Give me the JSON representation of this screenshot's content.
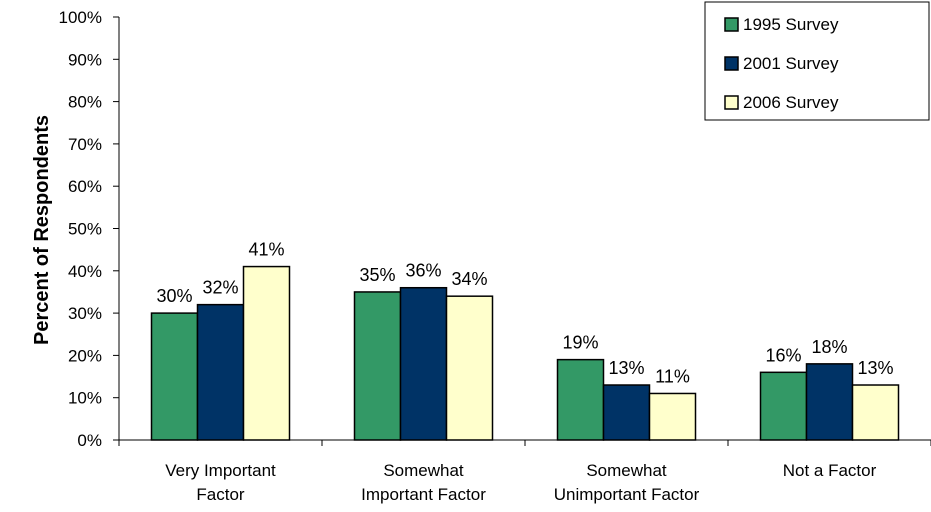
{
  "chart_data": {
    "type": "bar",
    "ylabel": "Percent of Respondents",
    "ylim": [
      0,
      100
    ],
    "yticks": [
      "0%",
      "10%",
      "20%",
      "30%",
      "40%",
      "50%",
      "60%",
      "70%",
      "80%",
      "90%",
      "100%"
    ],
    "categories": [
      [
        "Very Important",
        "Factor"
      ],
      [
        "Somewhat",
        "Important Factor"
      ],
      [
        "Somewhat",
        "Unimportant Factor"
      ],
      [
        "Not a Factor"
      ]
    ],
    "series": [
      {
        "name": "1995 Survey",
        "color": "#339966",
        "values": [
          30,
          35,
          19,
          16
        ],
        "labels": [
          "30%",
          "35%",
          "19%",
          "16%"
        ]
      },
      {
        "name": "2001 Survey",
        "color": "#003366",
        "values": [
          32,
          36,
          13,
          18
        ],
        "labels": [
          "32%",
          "36%",
          "13%",
          "18%"
        ]
      },
      {
        "name": "2006 Survey",
        "color": "#FFFFCC",
        "values": [
          41,
          34,
          11,
          13
        ],
        "labels": [
          "41%",
          "34%",
          "11%",
          "13%"
        ]
      }
    ],
    "legend_position": "top-right"
  }
}
